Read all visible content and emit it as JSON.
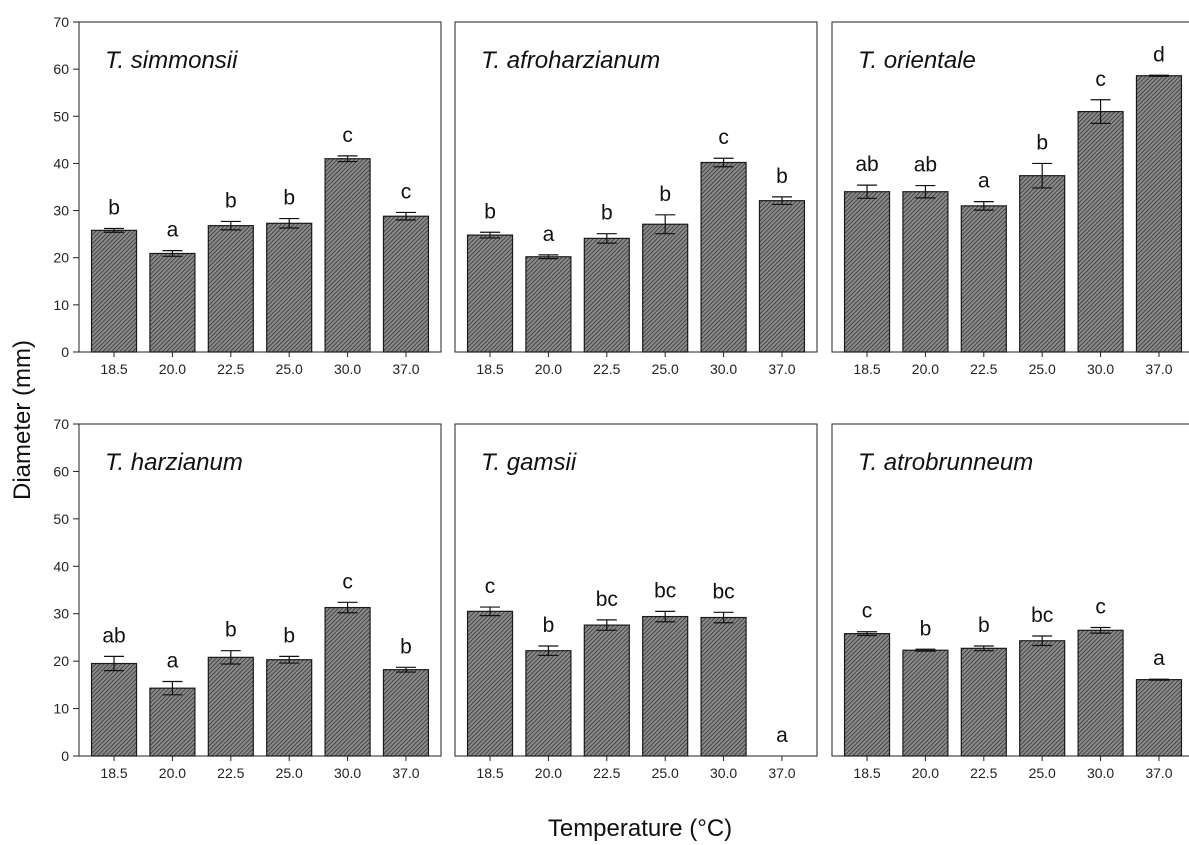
{
  "chart_data": {
    "type": "bar",
    "ylabel": "Diameter (mm)",
    "xlabel": "Temperature (°C)",
    "ylim": [
      0,
      70
    ],
    "yticks": [
      "0",
      "10",
      "20",
      "30",
      "40",
      "50",
      "60",
      "70"
    ],
    "categories": [
      "18.5",
      "20.0",
      "22.5",
      "25.0",
      "30.0",
      "37.0"
    ],
    "grid": false,
    "panels": [
      {
        "title": "T. simmonsii",
        "values": [
          25.8,
          20.9,
          26.8,
          27.3,
          41.0,
          28.8
        ],
        "errors": [
          0.4,
          0.6,
          0.9,
          1.0,
          0.6,
          0.8
        ],
        "letters": [
          "b",
          "a",
          "b",
          "b",
          "c",
          "c"
        ]
      },
      {
        "title": "T. afroharzianum",
        "values": [
          24.8,
          20.2,
          24.1,
          27.1,
          40.2,
          32.1
        ],
        "errors": [
          0.6,
          0.4,
          1.0,
          2.0,
          0.9,
          0.8
        ],
        "letters": [
          "b",
          "a",
          "b",
          "b",
          "c",
          "b"
        ]
      },
      {
        "title": "T. orientale",
        "values": [
          34.0,
          34.0,
          31.0,
          37.4,
          51.0,
          58.6
        ],
        "errors": [
          1.4,
          1.3,
          0.9,
          2.6,
          2.5,
          0.1
        ],
        "letters": [
          "ab",
          "ab",
          "a",
          "b",
          "c",
          "d"
        ]
      },
      {
        "title": "T. harzianum",
        "values": [
          19.5,
          14.3,
          20.8,
          20.3,
          31.3,
          18.2
        ],
        "errors": [
          1.5,
          1.4,
          1.4,
          0.7,
          1.1,
          0.5
        ],
        "letters": [
          "ab",
          "a",
          "b",
          "b",
          "c",
          "b"
        ]
      },
      {
        "title": "T. gamsii",
        "values": [
          30.5,
          22.2,
          27.6,
          29.4,
          29.2,
          0.0
        ],
        "errors": [
          0.9,
          1.0,
          1.1,
          1.1,
          1.1,
          0.0
        ],
        "letters": [
          "c",
          "b",
          "bc",
          "bc",
          "bc",
          "a"
        ]
      },
      {
        "title": "T. atrobrunneum",
        "values": [
          25.8,
          22.3,
          22.7,
          24.3,
          26.5,
          16.1
        ],
        "errors": [
          0.4,
          0.2,
          0.5,
          1.0,
          0.6,
          0.1
        ],
        "letters": [
          "c",
          "b",
          "b",
          "bc",
          "c",
          "a"
        ]
      }
    ]
  },
  "colors": {
    "bar_fill": "#6e6e6e",
    "bar_stroke": "#1a1a1a",
    "axis": "#222222"
  }
}
